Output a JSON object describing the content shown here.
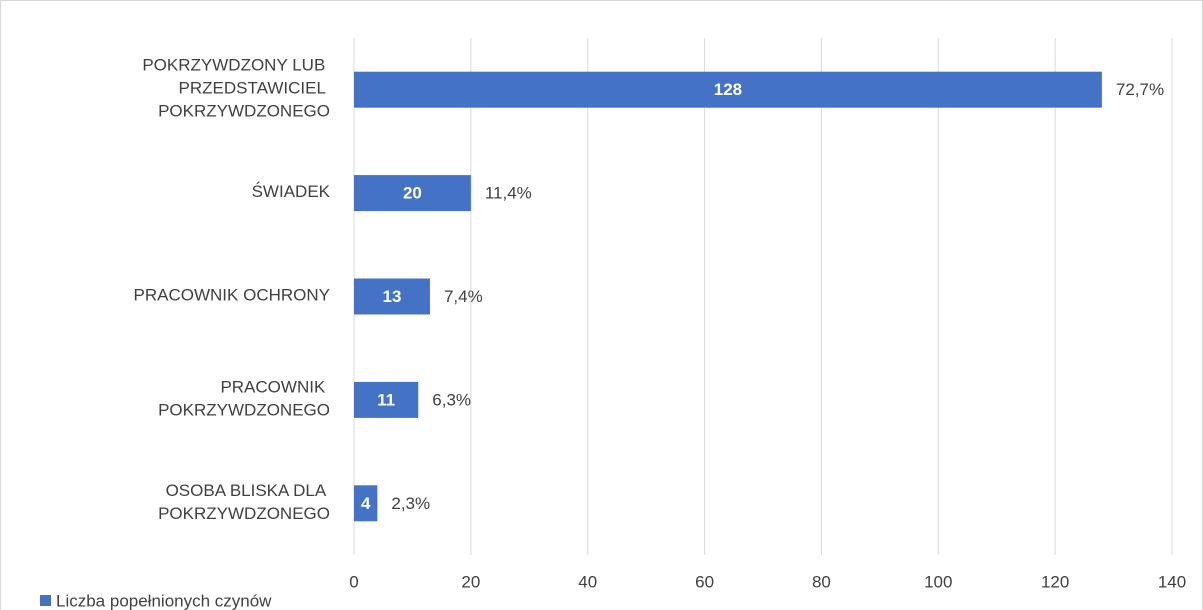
{
  "chart_data": {
    "type": "hbar",
    "categories": [
      "POKRZYWDZONY LUB PRZEDSTAWICIEL POKRZYWDZONEGO",
      "ŚWIADEK",
      "PRACOWNIK OCHRONY",
      "PRACOWNIK POKRZYWDZONEGO",
      "OSOBA BLISKA DLA POKRZYWDZONEGO"
    ],
    "series": [
      {
        "name": "Liczba popełnionych czynów",
        "color": "#4472c4",
        "values": [
          128,
          20,
          13,
          11,
          4
        ]
      }
    ],
    "annotations": [
      "72,7%",
      "11,4%",
      "7,4%",
      "6,3%",
      "2,3%"
    ],
    "xlim": [
      0,
      140
    ],
    "xticks": [
      0,
      20,
      40,
      60,
      80,
      100,
      120,
      140
    ],
    "grid": true,
    "legend": "bottom-left"
  }
}
